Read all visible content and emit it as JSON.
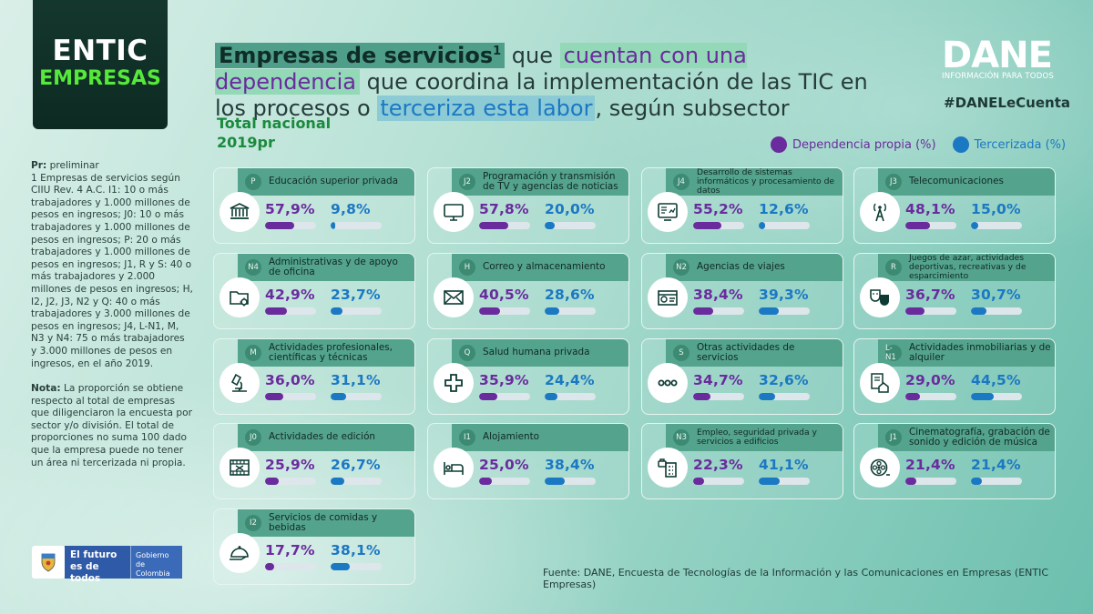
{
  "logo": {
    "line1": "ENTIC",
    "line2": "EMPRESAS"
  },
  "title": {
    "part1": "Empresas de servicios",
    "sup": "1",
    "part2": " que ",
    "part3": "cuentan con una dependencia",
    "part4": " que coordina la implementación de las TIC en los procesos o ",
    "part5": "terceriza esta labor",
    "part6": ", según subsector"
  },
  "subtitle": {
    "line1": "Total nacional",
    "line2": "2019pr"
  },
  "dane": {
    "logo": "DANE",
    "tagline": "INFORMACIÓN PARA TODOS",
    "hashtag": "#DANELeCuenta"
  },
  "legend": {
    "series1": "Dependencia propia (%)",
    "series2": "Tercerizada (%)"
  },
  "colors": {
    "propia": "#6a2b9d",
    "tercerizada": "#1b78c3"
  },
  "notes": {
    "pr_label": "Pr:",
    "pr_text": " preliminar",
    "footnote": "1 Empresas de servicios según CIIU Rev. 4 A.C. I1: 10 o más trabajadores y 1.000 millones de pesos en ingresos; J0: 10 o más trabajadores y 1.000 millones de pesos en ingresos; P: 20 o más trabajadores y 1.000 millones de pesos en ingresos; J1, R y S: 40 o más trabajadores y 2.000 millones de pesos en ingresos; H, I2, J2, J3, N2 y Q: 40 o más trabajadores y 3.000 millones de pesos en ingresos; J4, L-N1, M, N3 y N4: 75 o más trabajadores y 3.000 millones de pesos en ingresos, en el año 2019.",
    "nota_label": "Nota:",
    "nota_text": " La proporción se obtiene respecto al total de empresas que diligenciaron la encuesta por sector y/o división. El total de proporciones no suma 100 dado que la empresa puede no tener un área ni tercerizada ni propia."
  },
  "gov": {
    "mid": "El futuro es de todos",
    "right": "Gobierno de Colombia"
  },
  "source": "Fuente: DANE, Encuesta de Tecnologías de la Información y las Comunicaciones en Empresas (ENTIC Empresas)",
  "chart_data": {
    "type": "bar",
    "title": "Empresas de servicios que cuentan con una dependencia que coordina la implementación de las TIC en los procesos o terceriza esta labor, según subsector",
    "unit": "%",
    "series": [
      {
        "name": "Dependencia propia (%)",
        "key": "propia"
      },
      {
        "name": "Tercerizada (%)",
        "key": "tercerizada"
      }
    ],
    "categories": [
      {
        "code": "P",
        "name": "Educación superior privada",
        "icon": "university-icon",
        "propia": 57.9,
        "tercerizada": 9.8,
        "propia_label": "57,9%",
        "tercerizada_label": "9,8%"
      },
      {
        "code": "J2",
        "name": "Programación y transmisión de TV y agencias de noticias",
        "icon": "tv-icon",
        "propia": 57.8,
        "tercerizada": 20.0,
        "propia_label": "57,8%",
        "tercerizada_label": "20,0%"
      },
      {
        "code": "J4",
        "name": "Desarrollo de sistemas informáticos y procesamiento de datos",
        "icon": "computer-icon",
        "propia": 55.2,
        "tercerizada": 12.6,
        "propia_label": "55,2%",
        "tercerizada_label": "12,6%"
      },
      {
        "code": "J3",
        "name": "Telecomunicaciones",
        "icon": "antenna-icon",
        "propia": 48.1,
        "tercerizada": 15.0,
        "propia_label": "48,1%",
        "tercerizada_label": "15,0%"
      },
      {
        "code": "N4",
        "name": "Administrativas y de apoyo de oficina",
        "icon": "folder-gear-icon",
        "propia": 42.9,
        "tercerizada": 23.7,
        "propia_label": "42,9%",
        "tercerizada_label": "23,7%"
      },
      {
        "code": "H",
        "name": "Correo y almacenamiento",
        "icon": "envelope-icon",
        "propia": 40.5,
        "tercerizada": 28.6,
        "propia_label": "40,5%",
        "tercerizada_label": "28,6%"
      },
      {
        "code": "N2",
        "name": "Agencias de viajes",
        "icon": "travel-agency-icon",
        "propia": 38.4,
        "tercerizada": 39.3,
        "propia_label": "38,4%",
        "tercerizada_label": "39,3%"
      },
      {
        "code": "R",
        "name": "Juegos de azar, actividades deportivas, recreativas y de esparcimiento",
        "icon": "theater-masks-icon",
        "propia": 36.7,
        "tercerizada": 30.7,
        "propia_label": "36,7%",
        "tercerizada_label": "30,7%"
      },
      {
        "code": "M",
        "name": "Actividades profesionales, científicas y técnicas",
        "icon": "microscope-icon",
        "propia": 36.0,
        "tercerizada": 31.1,
        "propia_label": "36,0%",
        "tercerizada_label": "31,1%"
      },
      {
        "code": "Q",
        "name": "Salud humana privada",
        "icon": "medical-cross-icon",
        "propia": 35.9,
        "tercerizada": 24.4,
        "propia_label": "35,9%",
        "tercerizada_label": "24,4%"
      },
      {
        "code": "S",
        "name": "Otras actividades de servicios",
        "icon": "more-dots-icon",
        "propia": 34.7,
        "tercerizada": 32.6,
        "propia_label": "34,7%",
        "tercerizada_label": "32,6%"
      },
      {
        "code": "L-N1",
        "name": "Actividades inmobiliarias y de alquiler",
        "icon": "house-contract-icon",
        "propia": 29.0,
        "tercerizada": 44.5,
        "propia_label": "29,0%",
        "tercerizada_label": "44,5%"
      },
      {
        "code": "J0",
        "name": "Actividades de edición",
        "icon": "film-edit-icon",
        "propia": 25.9,
        "tercerizada": 26.7,
        "propia_label": "25,9%",
        "tercerizada_label": "26,7%"
      },
      {
        "code": "I1",
        "name": "Alojamiento",
        "icon": "bed-icon",
        "propia": 25.0,
        "tercerizada": 38.4,
        "propia_label": "25,0%",
        "tercerizada_label": "38,4%"
      },
      {
        "code": "N3",
        "name": "Empleo, seguridad privada y servicios a edificios",
        "icon": "building-briefcase-icon",
        "propia": 22.3,
        "tercerizada": 41.1,
        "propia_label": "22,3%",
        "tercerizada_label": "41,1%"
      },
      {
        "code": "J1",
        "name": "Cinematografía, grabación de sonido y edición de música",
        "icon": "film-reel-icon",
        "propia": 21.4,
        "tercerizada": 21.4,
        "propia_label": "21,4%",
        "tercerizada_label": "21,4%"
      },
      {
        "code": "I2",
        "name": "Servicios de comidas y bebidas",
        "icon": "food-cloche-icon",
        "propia": 17.7,
        "tercerizada": 38.1,
        "propia_label": "17,7%",
        "tercerizada_label": "38,1%"
      }
    ]
  }
}
